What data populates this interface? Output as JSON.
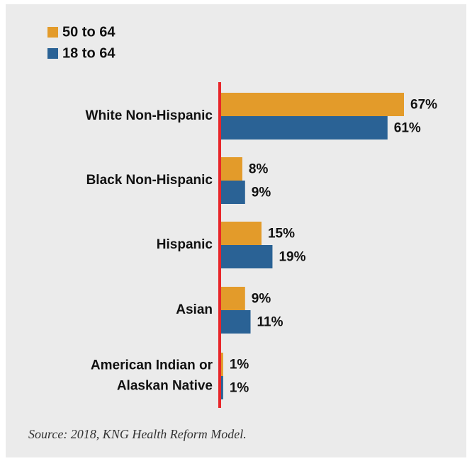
{
  "chart_data": {
    "type": "bar",
    "orientation": "horizontal",
    "categories": [
      [
        "White Non-Hispanic"
      ],
      [
        "Black Non-Hispanic"
      ],
      [
        "Hispanic"
      ],
      [
        "Asian"
      ],
      [
        "American Indian or",
        "Alaskan Native"
      ]
    ],
    "series": [
      {
        "name": "50 to 64",
        "color": "#e39b2a",
        "values": [
          67,
          8,
          15,
          9,
          1
        ],
        "labels": [
          "67%",
          "8%",
          "15%",
          "9%",
          "1%"
        ]
      },
      {
        "name": "18 to 64",
        "color": "#2a6295",
        "values": [
          61,
          9,
          19,
          11,
          1
        ],
        "labels": [
          "61%",
          "9%",
          "19%",
          "11%",
          "1%"
        ]
      }
    ],
    "axis_color": "#e8262a",
    "unit": "%",
    "legend_position": "top-left",
    "grid": false,
    "xlim": [
      0,
      67
    ]
  },
  "source": "Source: 2018, KNG Health Reform Model."
}
